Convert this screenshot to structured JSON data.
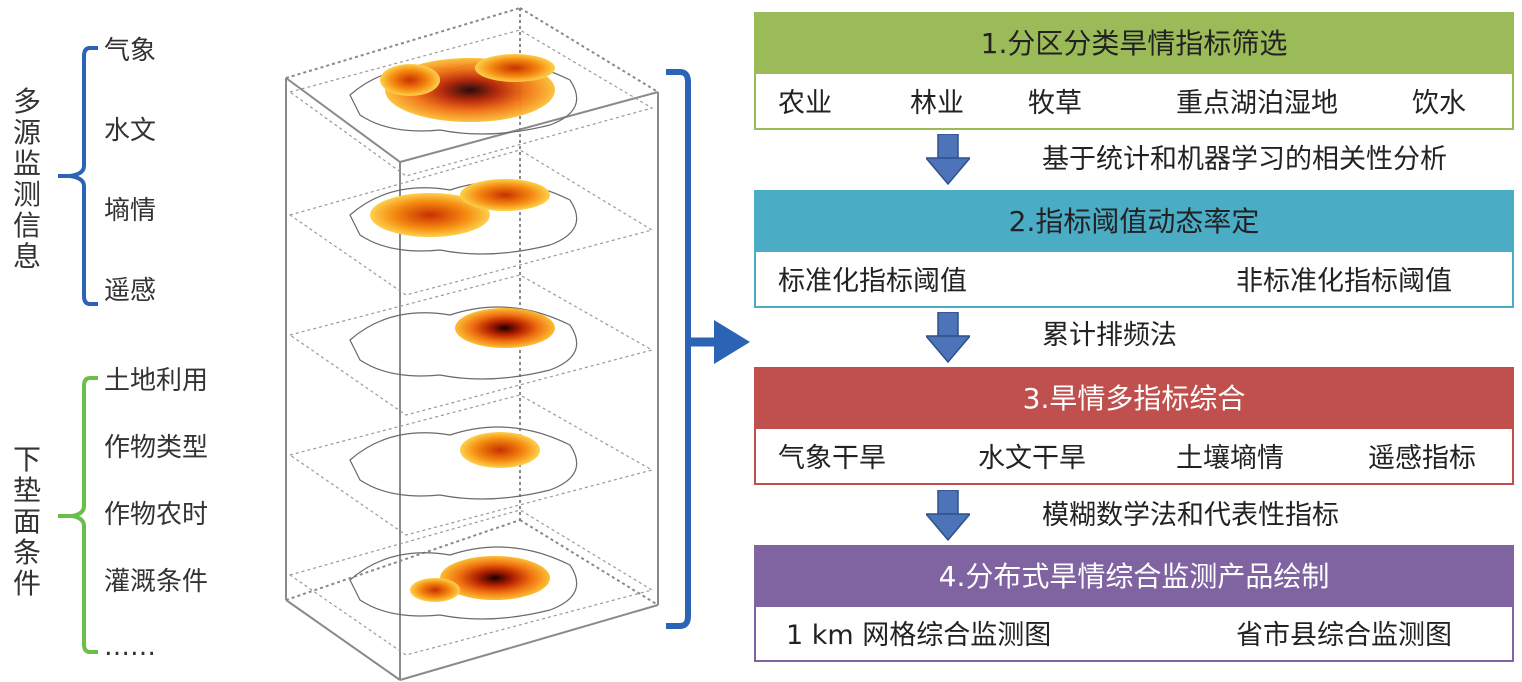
{
  "left_groups": [
    {
      "title": "多源监测信息",
      "color": "#2b63b5",
      "items": [
        "气象",
        "水文",
        "墒情",
        "遥感"
      ]
    },
    {
      "title": "下垫面条件",
      "color": "#6abf4b",
      "items": [
        "土地利用",
        "作物类型",
        "作物农时",
        "灌溉条件",
        "……"
      ]
    }
  ],
  "colors": {
    "bracket": "#2b63b5",
    "arrow": "#4d74b8",
    "stage1": "#9bbb59",
    "stage2": "#4bacc6",
    "stage3": "#c0504d",
    "stage4": "#8064a2"
  },
  "stages": [
    {
      "title": "1.分区分类旱情指标筛选",
      "items": [
        "农业",
        "林业",
        "牧草",
        "重点湖泊湿地",
        "饮水"
      ]
    },
    {
      "title": "2.指标阈值动态率定",
      "items": [
        "标准化指标阈值",
        "非标准化指标阈值"
      ]
    },
    {
      "title": "3.旱情多指标综合",
      "items": [
        "气象干旱",
        "水文干旱",
        "土壤墒情",
        "遥感指标"
      ]
    },
    {
      "title": "4.分布式旱情综合监测产品绘制",
      "items": [
        "1 km 网格综合监测图",
        "省市县综合监测图"
      ]
    }
  ],
  "methods": [
    "基于统计和机器学习的相关性分析",
    "累计排频法",
    "模糊数学法和代表性指标"
  ]
}
